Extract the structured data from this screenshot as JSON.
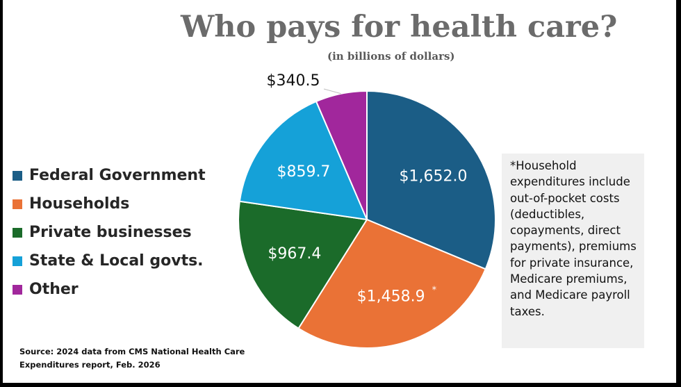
{
  "chart_data": {
    "type": "pie",
    "title": "Who pays for health care?",
    "subtitle": "(in billions of dollars)",
    "categories": [
      "Federal Government",
      "Households",
      "Private businesses",
      "State & Local govts.",
      "Other"
    ],
    "values": [
      1652.0,
      1458.9,
      967.4,
      859.7,
      340.5
    ],
    "value_labels": [
      "$1,652.0",
      "$1,458.9",
      "$967.4",
      "$859.7",
      "$340.5"
    ],
    "colors": [
      "#1b5d86",
      "#ea7236",
      "#1b6b2a",
      "#15a1d8",
      "#a1279c"
    ],
    "legend_position": "left",
    "annotations": [
      "*"
    ]
  },
  "note": "*Household expenditures include out-of-pocket costs (deductibles, copayments, direct payments), premiums for private insurance, Medicare premiums, and Medicare payroll taxes.",
  "source": "Source: 2024 data from CMS National Health Care Expenditures report, Feb. 2026"
}
